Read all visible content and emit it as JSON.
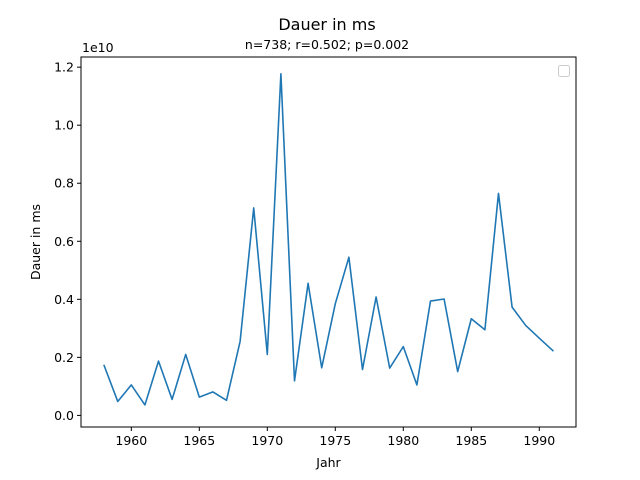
{
  "chart_data": {
    "type": "line",
    "title": "Dauer in ms",
    "subtitle": "n=738; r=0.502; p=0.002",
    "xlabel": "Jahr",
    "ylabel": "Dauer in ms",
    "y_offset_label": "1e10",
    "xlim": [
      1956.3,
      1992.7
    ],
    "ylim": [
      -0.04,
      1.235
    ],
    "x_ticks": [
      1960,
      1965,
      1970,
      1975,
      1980,
      1985,
      1990
    ],
    "y_ticks": [
      0.0,
      0.2,
      0.4,
      0.6,
      0.8,
      1.0,
      1.2
    ],
    "y_tick_labels": [
      "0.0",
      "0.2",
      "0.4",
      "0.6",
      "0.8",
      "1.0",
      "1.2"
    ],
    "legend": "top-right",
    "grid": false,
    "color": "#1f77b4",
    "x": [
      1958,
      1959,
      1960,
      1961,
      1962,
      1963,
      1964,
      1965,
      1966,
      1967,
      1968,
      1969,
      1970,
      1971,
      1972,
      1973,
      1974,
      1975,
      1976,
      1977,
      1978,
      1979,
      1980,
      1981,
      1982,
      1983,
      1984,
      1985,
      1986,
      1987,
      1988,
      1989,
      1990,
      1991
    ],
    "values": [
      0.172,
      0.048,
      0.105,
      0.036,
      0.187,
      0.055,
      0.21,
      0.063,
      0.081,
      0.052,
      0.255,
      0.715,
      0.21,
      1.177,
      0.119,
      0.455,
      0.164,
      0.385,
      0.545,
      0.158,
      0.408,
      0.163,
      0.237,
      0.105,
      0.394,
      0.401,
      0.151,
      0.333,
      0.295,
      0.765,
      0.373,
      0.31,
      0.266,
      0.223
    ]
  }
}
